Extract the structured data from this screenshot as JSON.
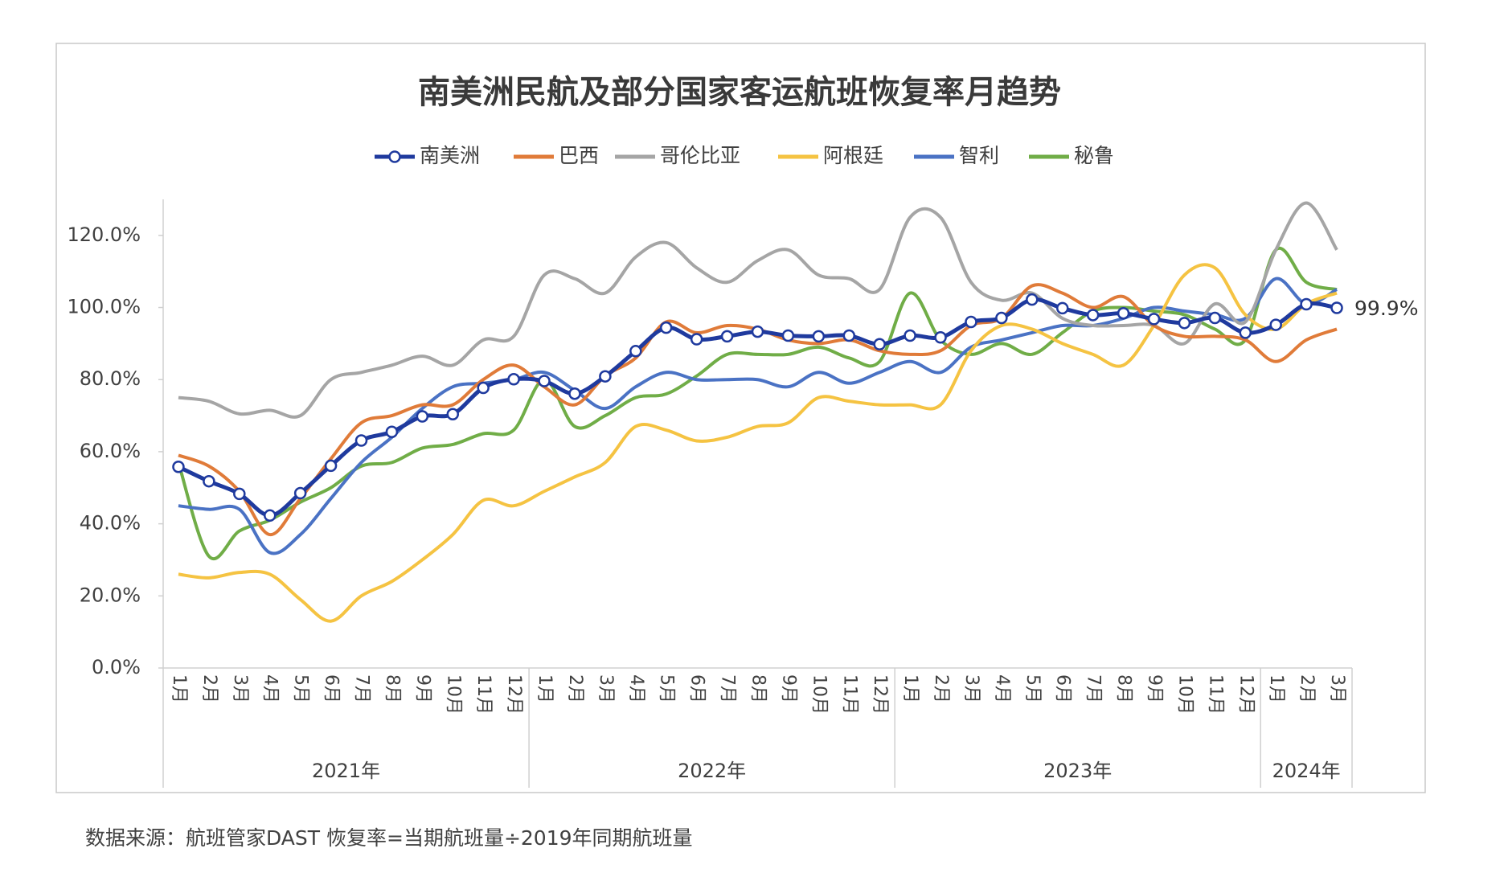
{
  "chart_data": {
    "type": "line",
    "title": "南美洲民航及部分国家客运航班恢复率月趋势",
    "source": "数据来源：航班管家DAST 恢复率=当期航班量÷2019年同期航班量",
    "groups": [
      {
        "label": "2021年",
        "categories": [
          "1月",
          "2月",
          "3月",
          "4月",
          "5月",
          "6月",
          "7月",
          "8月",
          "9月",
          "10月",
          "11月",
          "12月"
        ]
      },
      {
        "label": "2022年",
        "categories": [
          "1月",
          "2月",
          "3月",
          "4月",
          "5月",
          "6月",
          "7月",
          "8月",
          "9月",
          "10月",
          "11月",
          "12月"
        ]
      },
      {
        "label": "2023年",
        "categories": [
          "1月",
          "2月",
          "3月",
          "4月",
          "5月",
          "6月",
          "7月",
          "8月",
          "9月",
          "10月",
          "11月",
          "12月"
        ]
      },
      {
        "label": "2024年",
        "categories": [
          "1月",
          "2月",
          "3月"
        ]
      }
    ],
    "ylim": [
      0,
      130
    ],
    "yticks": [
      {
        "value": 0,
        "label": "0.0%"
      },
      {
        "value": 20,
        "label": "20.0%"
      },
      {
        "value": 40,
        "label": "40.0%"
      },
      {
        "value": 60,
        "label": "60.0%"
      },
      {
        "value": 80,
        "label": "80.0%"
      },
      {
        "value": 100,
        "label": "100.0%"
      },
      {
        "value": 120,
        "label": "120.0%"
      }
    ],
    "grid": false,
    "legend": "top",
    "series": [
      {
        "name": "南美洲",
        "color": "#1f3a9e",
        "markers": true,
        "values": [
          55.8,
          51.8,
          48.3,
          42.3,
          48.5,
          56.1,
          63.1,
          65.5,
          69.8,
          70.4,
          77.7,
          80.1,
          79.6,
          76.1,
          80.9,
          87.9,
          94.4,
          91.2,
          92.0,
          93.3,
          92.2,
          92.0,
          92.2,
          89.8,
          92.2,
          91.7,
          96.0,
          97.1,
          102.2,
          99.8,
          97.9,
          98.4,
          96.8,
          95.7,
          97.1,
          93.0,
          95.2,
          100.9,
          99.9
        ],
        "value_labels": [
          null,
          null,
          null,
          null,
          null,
          null,
          null,
          null,
          null,
          null,
          null,
          null,
          null,
          null,
          null,
          null,
          null,
          null,
          null,
          null,
          null,
          null,
          null,
          null,
          null,
          null,
          null,
          null,
          null,
          null,
          null,
          null,
          null,
          null,
          null,
          null,
          null,
          null,
          "99.9%"
        ]
      },
      {
        "name": "巴西",
        "color": "#e07b39",
        "values": [
          59,
          56,
          49,
          37,
          47,
          58,
          68,
          70,
          73,
          73,
          80,
          84,
          78,
          73,
          81,
          86,
          96,
          93,
          95,
          94,
          91,
          90,
          91,
          88,
          87,
          88,
          95,
          97,
          106,
          104,
          100,
          103,
          95,
          92,
          92,
          91,
          85,
          91,
          94
        ]
      },
      {
        "name": "哥伦比亚",
        "color": "#a5a5a5",
        "values": [
          75,
          74,
          70.5,
          71.5,
          70,
          80,
          82,
          84,
          86.5,
          84,
          91,
          92,
          109,
          108,
          104,
          114,
          118,
          111,
          107,
          113,
          116,
          109,
          108,
          105,
          125,
          125,
          107,
          102,
          104,
          97,
          95,
          95,
          95,
          90,
          101,
          96,
          116,
          129,
          116
        ]
      },
      {
        "name": "阿根廷",
        "color": "#f5c342",
        "values": [
          26,
          25,
          26.5,
          26,
          19,
          13,
          20,
          24,
          30,
          37,
          46.5,
          45,
          49,
          53,
          57,
          67,
          66,
          63,
          64,
          67,
          68,
          75,
          74,
          73,
          73,
          73,
          88,
          95,
          94,
          90,
          87,
          84,
          95,
          109,
          111,
          98,
          94,
          101,
          104
        ]
      },
      {
        "name": "智利",
        "color": "#4a72c4",
        "values": [
          45,
          44,
          44,
          32,
          37,
          47,
          57,
          64,
          72,
          78,
          79,
          80,
          82,
          77,
          72,
          78,
          82,
          80,
          80,
          80,
          78,
          82,
          79,
          82,
          85,
          82,
          89,
          91,
          93,
          95,
          95,
          97,
          100,
          99,
          98,
          97,
          108,
          101,
          105
        ]
      },
      {
        "name": "秘鲁",
        "color": "#70ad47",
        "values": [
          57,
          31,
          38,
          41,
          46,
          50,
          56,
          57,
          61,
          62,
          65,
          66,
          80,
          67,
          70,
          75,
          76,
          81,
          87,
          87,
          87,
          89,
          86,
          85,
          104,
          91,
          87,
          90,
          87,
          93,
          99,
          100,
          99,
          98,
          94,
          91,
          116,
          107,
          105
        ]
      }
    ]
  }
}
